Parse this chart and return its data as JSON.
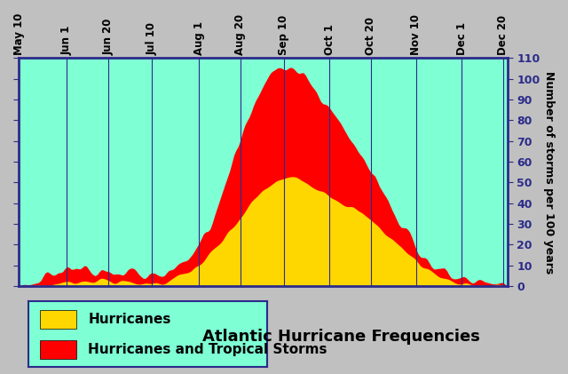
{
  "title": "Atlantic Hurricane Frequencies",
  "ylabel": "Number of storms per 100 years",
  "bg_color": "#7FFFD4",
  "plot_bg": "#7FFFD4",
  "border_color": "#2B2B8B",
  "tick_label_color": "#2B2B8B",
  "yticks": [
    0,
    10,
    20,
    30,
    40,
    50,
    60,
    70,
    80,
    90,
    100,
    110
  ],
  "xtick_labels": [
    "May 10",
    "Jun 1",
    "Jun 20",
    "Jul 10",
    "Aug 1",
    "Aug 20",
    "Sep 10",
    "Oct 1",
    "Oct 20",
    "Nov 10",
    "Dec 1",
    "Dec 20"
  ],
  "xtick_positions": [
    0,
    22,
    41,
    61,
    83,
    102,
    122,
    143,
    162,
    183,
    204,
    223
  ],
  "hurricane_color": "#FFD700",
  "tropical_storm_color": "#FF0000",
  "legend_bg": "#7FFFD4",
  "legend_border": "#2B2B8B",
  "total_days": 225
}
